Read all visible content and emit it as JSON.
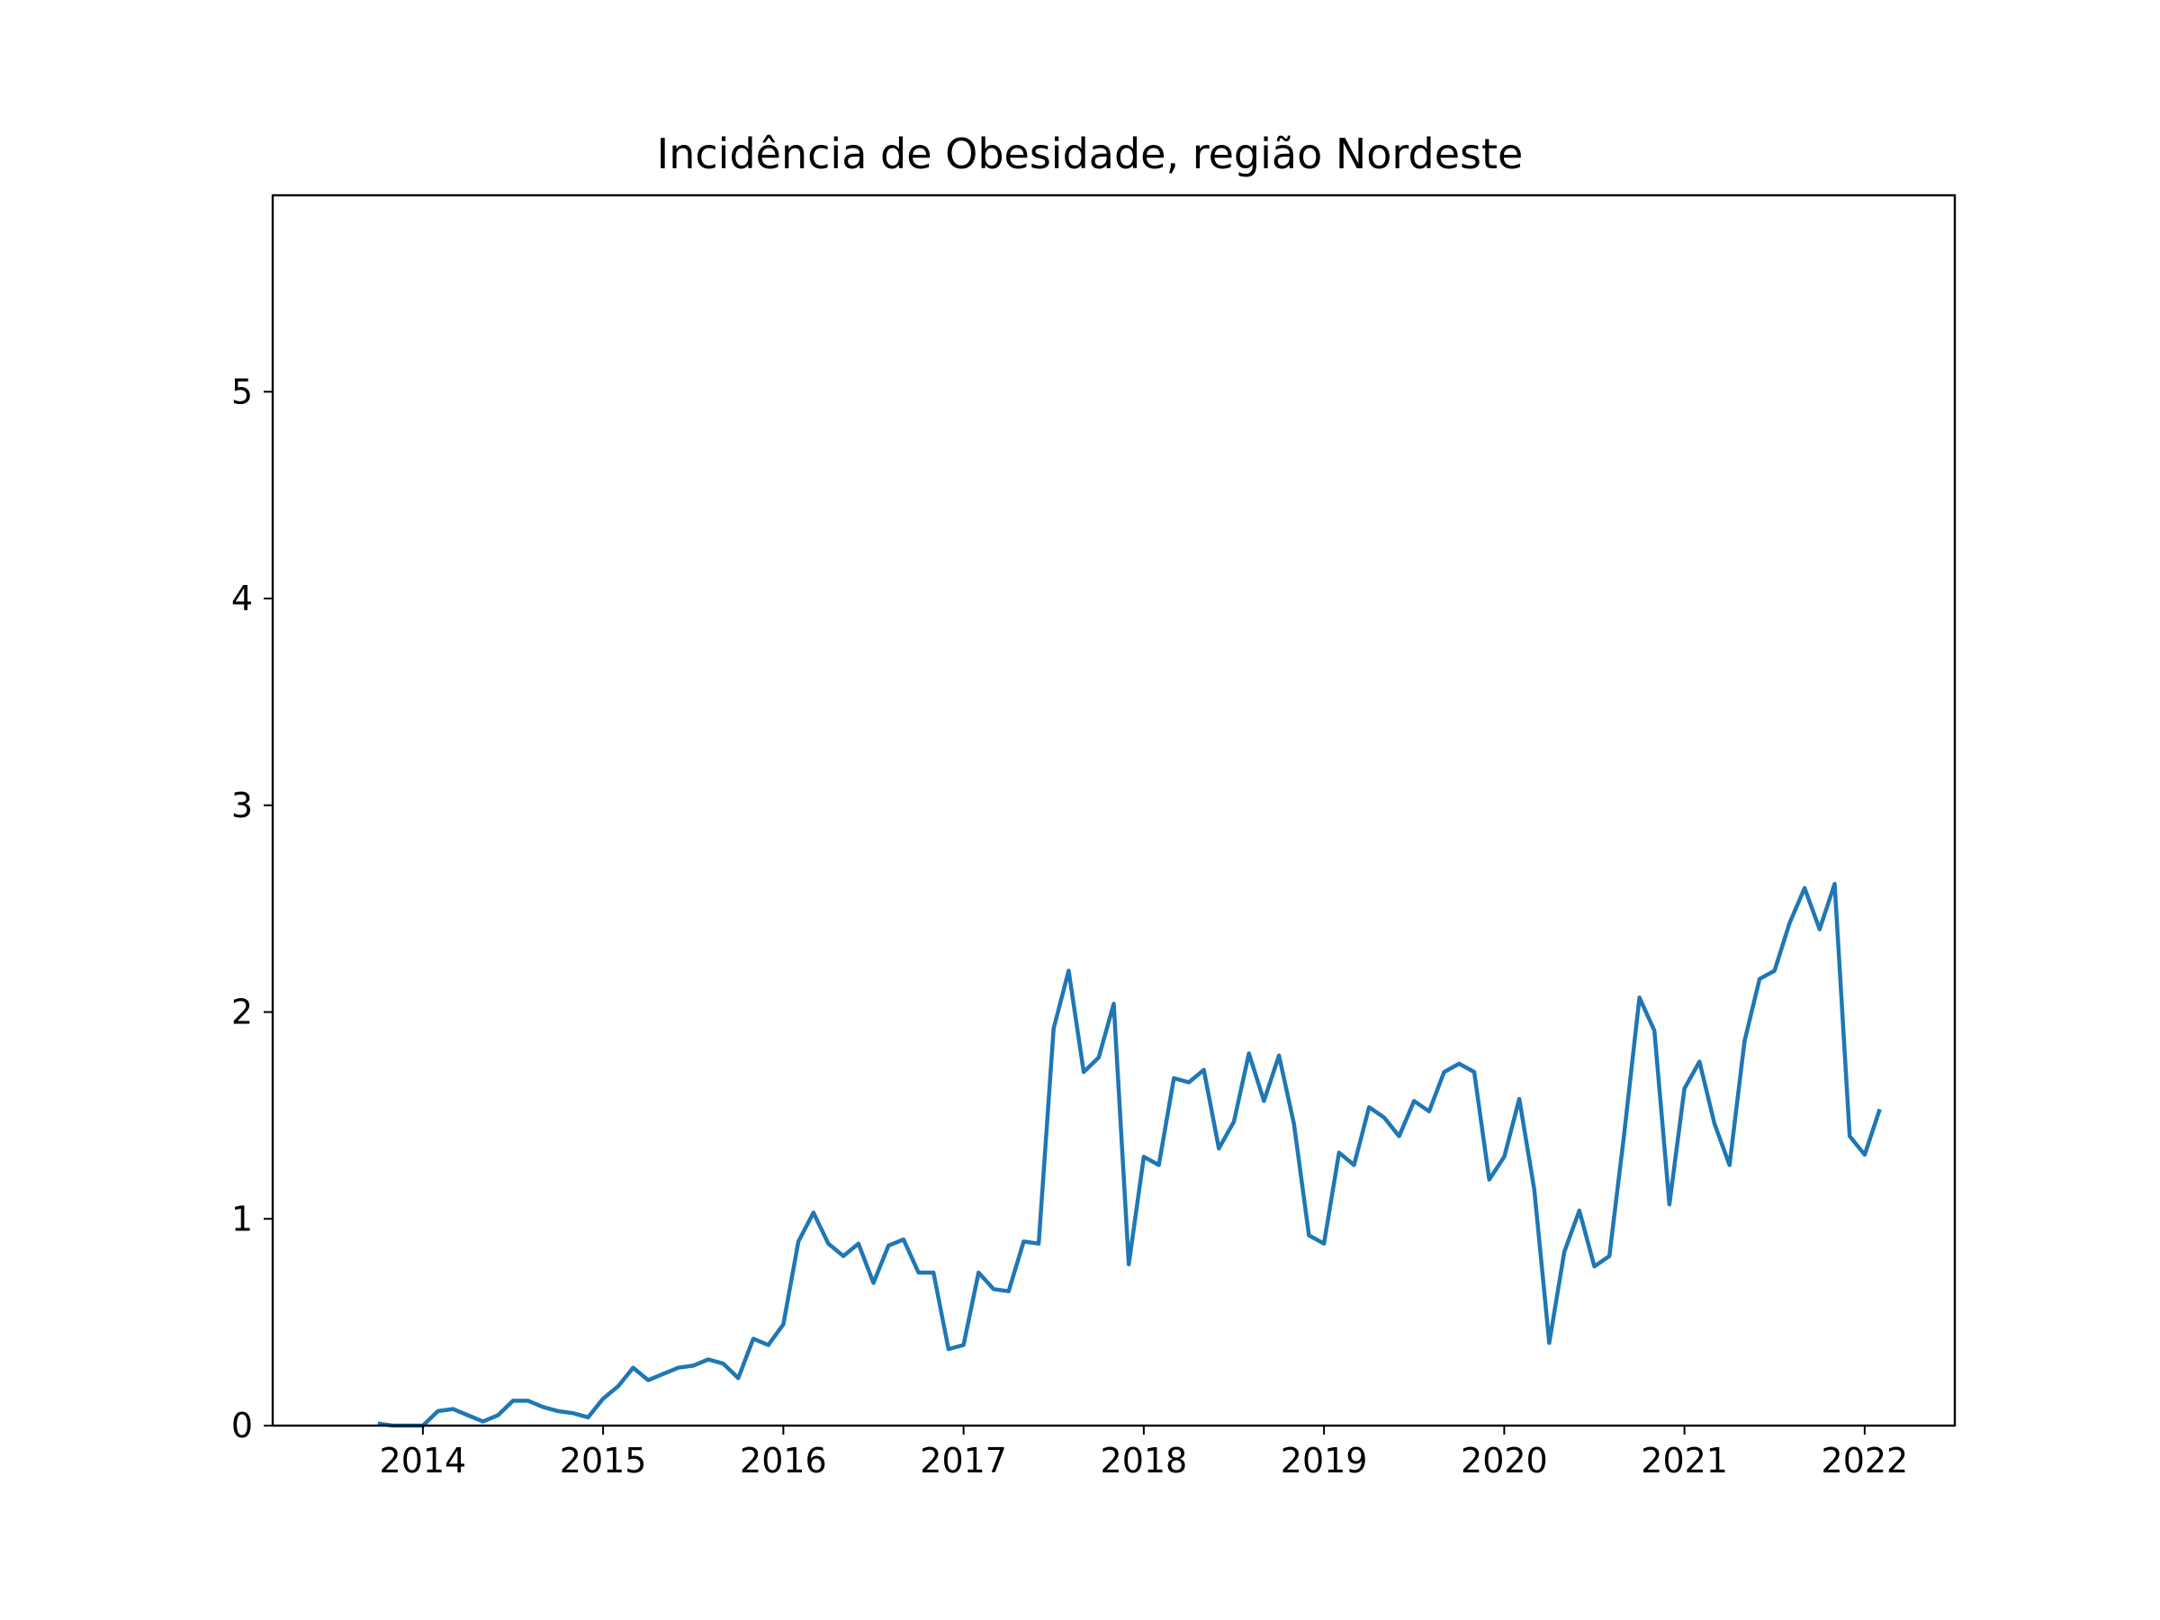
{
  "chart_data": {
    "type": "line",
    "title": "Incidência de Obesidade, região Nordeste",
    "xlabel": "",
    "ylabel": "",
    "xlim": [
      "2013-03-01",
      "2022-07-01"
    ],
    "ylim": [
      0,
      5.95
    ],
    "x_ticks": [
      "2014",
      "2015",
      "2016",
      "2017",
      "2018",
      "2019",
      "2020",
      "2021",
      "2022"
    ],
    "y_ticks": [
      "0",
      "1",
      "2",
      "3",
      "4",
      "5"
    ],
    "grid": false,
    "legend": "none",
    "colors": {
      "line": "#1f77b4",
      "axes": "#000000",
      "background": "#ffffff"
    },
    "series": [
      {
        "x": [
          "2013-10",
          "2013-11",
          "2013-12",
          "2014-01",
          "2014-02",
          "2014-03",
          "2014-04",
          "2014-05",
          "2014-06",
          "2014-07",
          "2014-08",
          "2014-09",
          "2014-10",
          "2014-11",
          "2014-12",
          "2015-01",
          "2015-02",
          "2015-03",
          "2015-04",
          "2015-05",
          "2015-06",
          "2015-07",
          "2015-08",
          "2015-09",
          "2015-10",
          "2015-11",
          "2015-12",
          "2016-01",
          "2016-02",
          "2016-03",
          "2016-04",
          "2016-05",
          "2016-06",
          "2016-07",
          "2016-08",
          "2016-09",
          "2016-10",
          "2016-11",
          "2016-12",
          "2017-01",
          "2017-02",
          "2017-03",
          "2017-04",
          "2017-05",
          "2017-06",
          "2017-07",
          "2017-08",
          "2017-09",
          "2017-10",
          "2017-11",
          "2017-12",
          "2018-01",
          "2018-02",
          "2018-03",
          "2018-04",
          "2018-05",
          "2018-06",
          "2018-07",
          "2018-08",
          "2018-09",
          "2018-10",
          "2018-11",
          "2018-12",
          "2019-01",
          "2019-02",
          "2019-03",
          "2019-04",
          "2019-05",
          "2019-06",
          "2019-07",
          "2019-08",
          "2019-09",
          "2019-10",
          "2019-11",
          "2019-12",
          "2020-01",
          "2020-02",
          "2020-03",
          "2020-04",
          "2020-05",
          "2020-06",
          "2020-07",
          "2020-08",
          "2020-09",
          "2020-10",
          "2020-11",
          "2020-12",
          "2021-01",
          "2021-02",
          "2021-03",
          "2021-04",
          "2021-05",
          "2021-06",
          "2021-07",
          "2021-08",
          "2021-09",
          "2021-10",
          "2021-11",
          "2021-12",
          "2022-01",
          "2022-02"
        ],
        "values": [
          0.01,
          0.0,
          0.0,
          0.0,
          0.07,
          0.08,
          0.05,
          0.02,
          0.05,
          0.12,
          0.12,
          0.09,
          0.07,
          0.06,
          0.04,
          0.13,
          0.19,
          0.28,
          0.22,
          0.25,
          0.28,
          0.29,
          0.32,
          0.3,
          0.23,
          0.42,
          0.39,
          0.49,
          0.89,
          1.03,
          0.88,
          0.82,
          0.88,
          0.69,
          0.87,
          0.9,
          0.74,
          0.74,
          0.37,
          0.39,
          0.74,
          0.66,
          0.65,
          0.89,
          0.88,
          1.92,
          2.2,
          1.71,
          1.78,
          2.04,
          0.78,
          1.3,
          1.26,
          1.68,
          1.66,
          1.72,
          1.34,
          1.47,
          1.8,
          1.57,
          1.79,
          1.46,
          0.92,
          0.88,
          1.32,
          1.26,
          1.54,
          1.49,
          1.4,
          1.57,
          1.52,
          1.71,
          1.75,
          1.71,
          1.19,
          1.3,
          1.58,
          1.14,
          0.4,
          0.84,
          1.04,
          0.77,
          0.82,
          1.42,
          2.07,
          1.91,
          1.07,
          1.63,
          1.76,
          1.46,
          1.26,
          1.86,
          2.16,
          2.2,
          2.43,
          2.6,
          2.4,
          2.62,
          1.4,
          1.31,
          1.53
        ]
      }
    ]
  }
}
